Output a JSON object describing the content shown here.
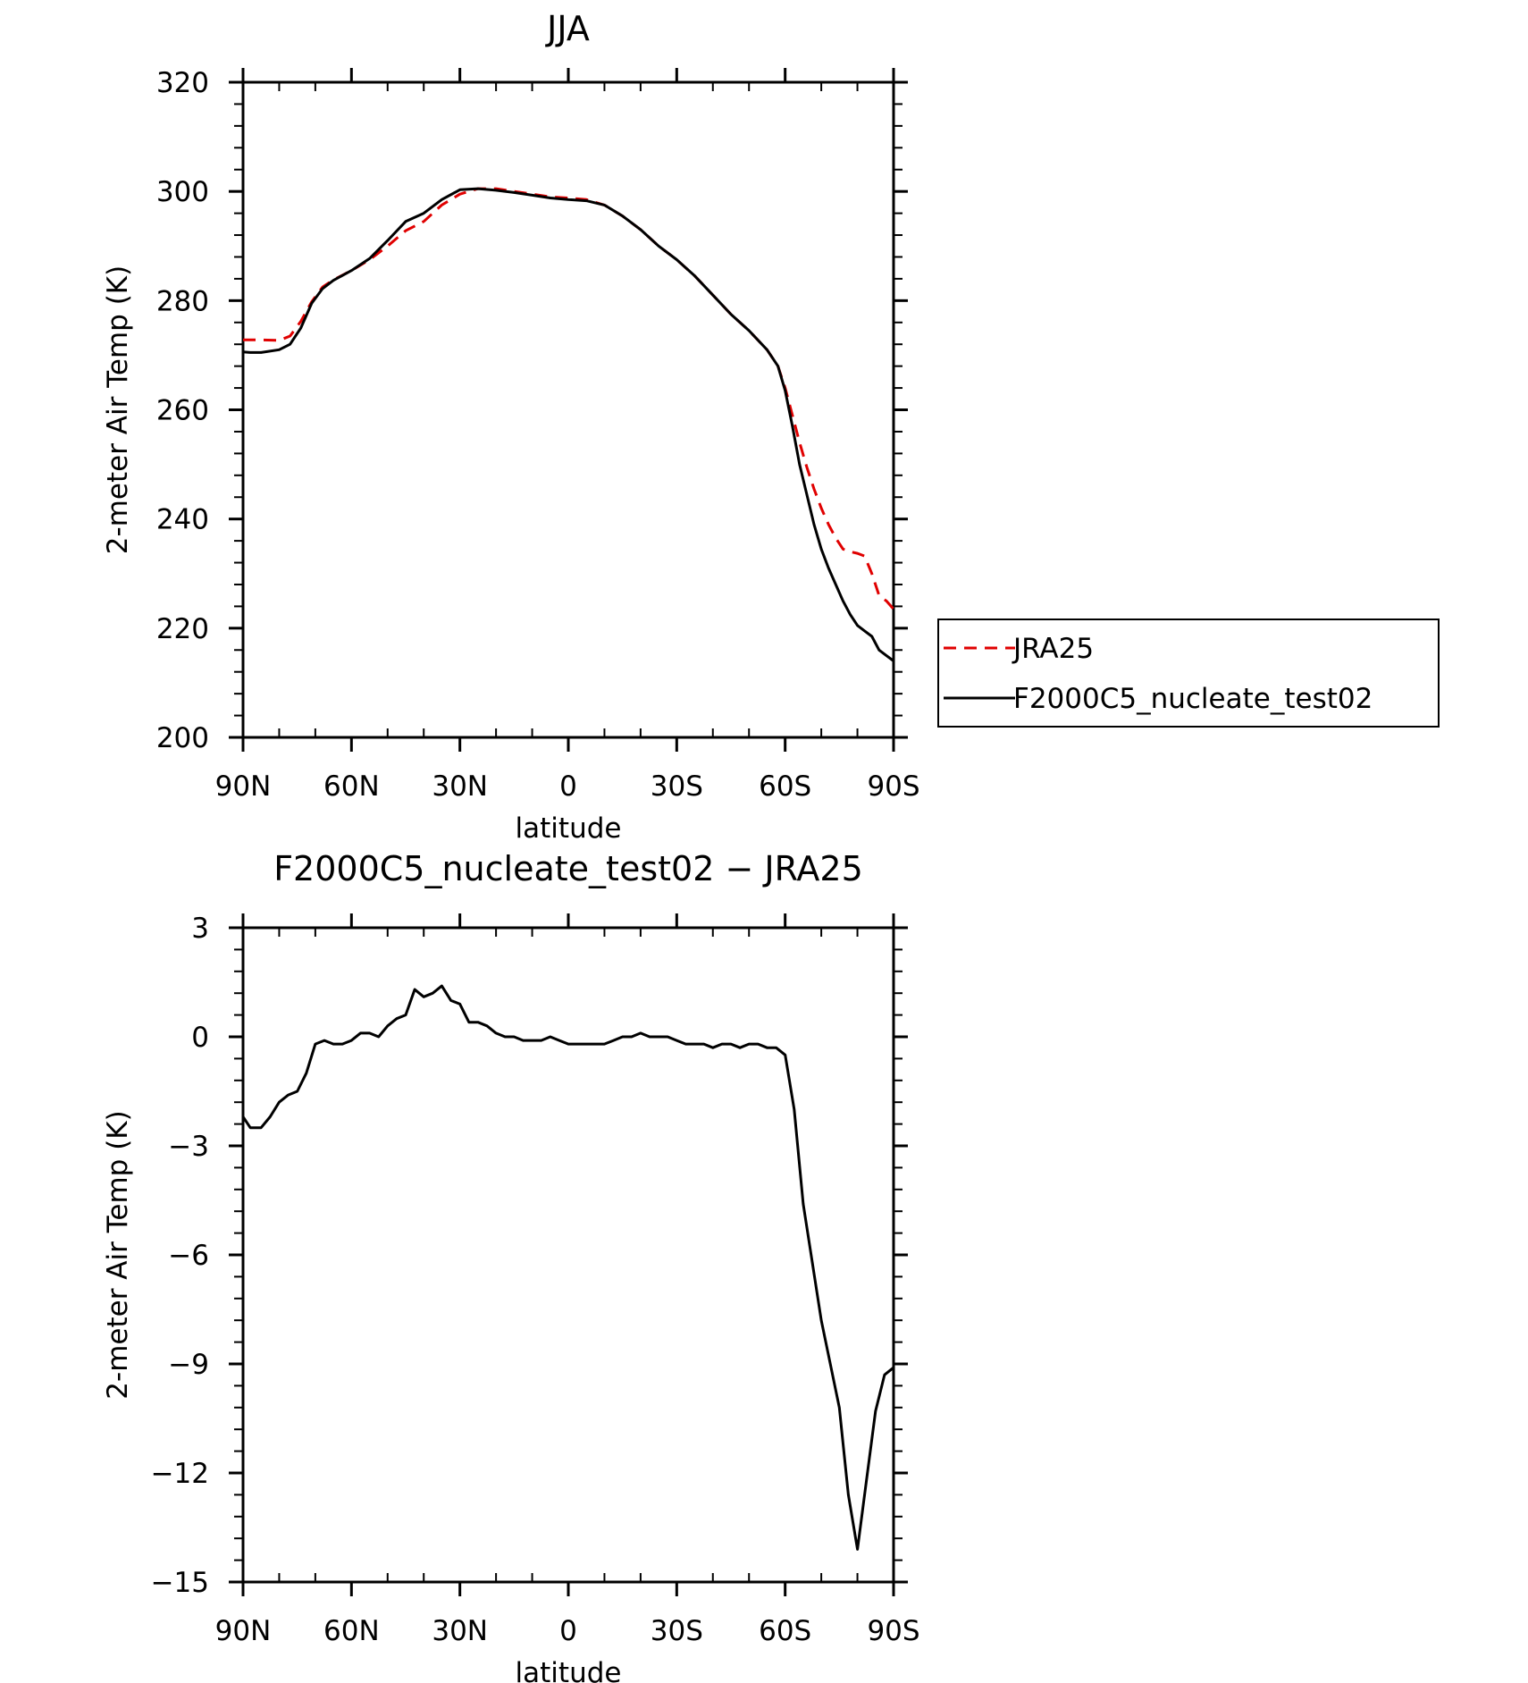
{
  "charts": [
    {
      "type": "line",
      "title": "JJA",
      "xlabel": "latitude",
      "ylabel": "2-meter Air Temp (K)",
      "xlim": [
        90,
        -90
      ],
      "ylim": [
        200,
        320
      ],
      "xticks": [
        {
          "value": 90,
          "label": "90N"
        },
        {
          "value": 60,
          "label": "60N"
        },
        {
          "value": 30,
          "label": "30N"
        },
        {
          "value": 0,
          "label": "0"
        },
        {
          "value": -30,
          "label": "30S"
        },
        {
          "value": -60,
          "label": "60S"
        },
        {
          "value": -90,
          "label": "90S"
        }
      ],
      "yticks": [
        {
          "value": 200,
          "label": "200"
        },
        {
          "value": 220,
          "label": "220"
        },
        {
          "value": 240,
          "label": "240"
        },
        {
          "value": 260,
          "label": "260"
        },
        {
          "value": 280,
          "label": "280"
        },
        {
          "value": 300,
          "label": "300"
        },
        {
          "value": 320,
          "label": "320"
        }
      ],
      "legend": {
        "placement": "right",
        "entries": [
          {
            "label": "JRA25",
            "color": "#e00000",
            "dash": "dashed"
          },
          {
            "label": "F2000C5_nucleate_test02",
            "color": "#000000",
            "dash": "solid"
          }
        ]
      },
      "series": [
        {
          "name": "JRA25",
          "color": "#e00000",
          "dash": "dashed",
          "x": [
            90,
            85,
            80,
            77,
            74,
            71,
            68,
            65,
            60,
            55,
            50,
            45,
            40,
            35,
            30,
            25,
            20,
            15,
            10,
            5,
            0,
            -5,
            -10,
            -15,
            -20,
            -25,
            -30,
            -35,
            -40,
            -45,
            -50,
            -55,
            -58,
            -60,
            -62,
            -64,
            -66,
            -68,
            -70,
            -72,
            -74,
            -76,
            -78,
            -80,
            -82,
            -84,
            -86,
            -88,
            -90
          ],
          "y": [
            272.8,
            272.8,
            272.7,
            273.5,
            276.2,
            279.8,
            282.5,
            283.8,
            285.5,
            287.5,
            290.0,
            292.8,
            294.5,
            297.5,
            299.5,
            300.5,
            300.5,
            300.0,
            299.5,
            299.0,
            298.8,
            298.5,
            297.5,
            295.5,
            293.0,
            290.0,
            287.5,
            284.5,
            281.0,
            277.5,
            274.5,
            271.0,
            268.0,
            264.0,
            259.0,
            254.0,
            249.5,
            245.5,
            242.0,
            239.0,
            236.5,
            234.5,
            234.0,
            233.7,
            233.2,
            230.0,
            226.0,
            225.0,
            223.5
          ]
        },
        {
          "name": "F2000C5_nucleate_test02",
          "color": "#000000",
          "dash": "solid",
          "x": [
            90,
            88,
            85,
            80,
            77,
            74,
            71,
            68,
            65,
            60,
            55,
            50,
            45,
            40,
            35,
            30,
            25,
            20,
            15,
            10,
            5,
            0,
            -5,
            -10,
            -15,
            -20,
            -25,
            -30,
            -35,
            -40,
            -45,
            -50,
            -55,
            -58,
            -60,
            -62,
            -64,
            -66,
            -68,
            -70,
            -72,
            -74,
            -76,
            -78,
            -80,
            -82,
            -84,
            -86,
            -88,
            -90
          ],
          "y": [
            270.6,
            270.5,
            270.5,
            271.0,
            272.0,
            275.0,
            279.5,
            282.2,
            283.7,
            285.5,
            287.7,
            291.0,
            294.5,
            296.0,
            298.5,
            300.3,
            300.5,
            300.2,
            299.8,
            299.3,
            298.8,
            298.5,
            298.3,
            297.5,
            295.5,
            293.0,
            290.0,
            287.5,
            284.5,
            281.0,
            277.5,
            274.5,
            271.0,
            268.0,
            263.5,
            257.0,
            250.0,
            244.5,
            239.0,
            234.5,
            231.0,
            228.0,
            225.0,
            222.5,
            220.5,
            219.5,
            218.5,
            216.0,
            215.0,
            214.0
          ]
        }
      ]
    },
    {
      "type": "line",
      "title": "F2000C5_nucleate_test02 − JRA25",
      "xlabel": "latitude",
      "ylabel": "2-meter Air Temp (K)",
      "xlim": [
        90,
        -90
      ],
      "ylim": [
        -15,
        3
      ],
      "xticks": [
        {
          "value": 90,
          "label": "90N"
        },
        {
          "value": 60,
          "label": "60N"
        },
        {
          "value": 30,
          "label": "30N"
        },
        {
          "value": 0,
          "label": "0"
        },
        {
          "value": -30,
          "label": "30S"
        },
        {
          "value": -60,
          "label": "60S"
        },
        {
          "value": -90,
          "label": "90S"
        }
      ],
      "yticks": [
        {
          "value": 3,
          "label": "3"
        },
        {
          "value": 0,
          "label": "0"
        },
        {
          "value": -3,
          "label": "−3"
        },
        {
          "value": -6,
          "label": "−6"
        },
        {
          "value": -9,
          "label": "−9"
        },
        {
          "value": -12,
          "label": "−12"
        },
        {
          "value": -15,
          "label": "−15"
        }
      ],
      "series": [
        {
          "color": "#000000",
          "dash": "solid",
          "x": [
            90,
            88,
            85,
            82.5,
            80,
            77.5,
            75,
            72.5,
            70,
            67.5,
            65,
            62.5,
            60,
            57.5,
            55,
            52.5,
            50,
            47.5,
            45,
            42.5,
            40,
            37.5,
            35,
            32.5,
            30,
            27.5,
            25,
            22.5,
            20,
            17.5,
            15,
            12.5,
            10,
            7.5,
            5,
            2.5,
            0,
            -2.5,
            -5,
            -7.5,
            -10,
            -12.5,
            -15,
            -17.5,
            -20,
            -22.5,
            -25,
            -27.5,
            -30,
            -32.5,
            -35,
            -37.5,
            -40,
            -42.5,
            -45,
            -47.5,
            -50,
            -52.5,
            -55,
            -57.5,
            -60,
            -62.5,
            -65,
            -67.5,
            -70,
            -72.5,
            -75,
            -77.5,
            -80,
            -82.5,
            -85,
            -87.5,
            -90
          ],
          "y": [
            -2.2,
            -2.5,
            -2.5,
            -2.2,
            -1.8,
            -1.6,
            -1.5,
            -1.0,
            -0.2,
            -0.1,
            -0.2,
            -0.2,
            -0.1,
            0.1,
            0.1,
            0.0,
            0.3,
            0.5,
            0.6,
            1.3,
            1.1,
            1.2,
            1.4,
            1.0,
            0.9,
            0.4,
            0.4,
            0.3,
            0.1,
            0.0,
            0.0,
            -0.1,
            -0.1,
            -0.1,
            0.0,
            -0.1,
            -0.2,
            -0.2,
            -0.2,
            -0.2,
            -0.2,
            -0.1,
            0.0,
            0.0,
            0.1,
            0.0,
            0.0,
            0.0,
            -0.1,
            -0.2,
            -0.2,
            -0.2,
            -0.3,
            -0.2,
            -0.2,
            -0.3,
            -0.2,
            -0.2,
            -0.3,
            -0.3,
            -0.5,
            -2.0,
            -4.6,
            -6.2,
            -7.8,
            -9.0,
            -10.2,
            -12.6,
            -14.1,
            -12.2,
            -10.3,
            -9.3,
            -9.1
          ]
        }
      ]
    }
  ]
}
